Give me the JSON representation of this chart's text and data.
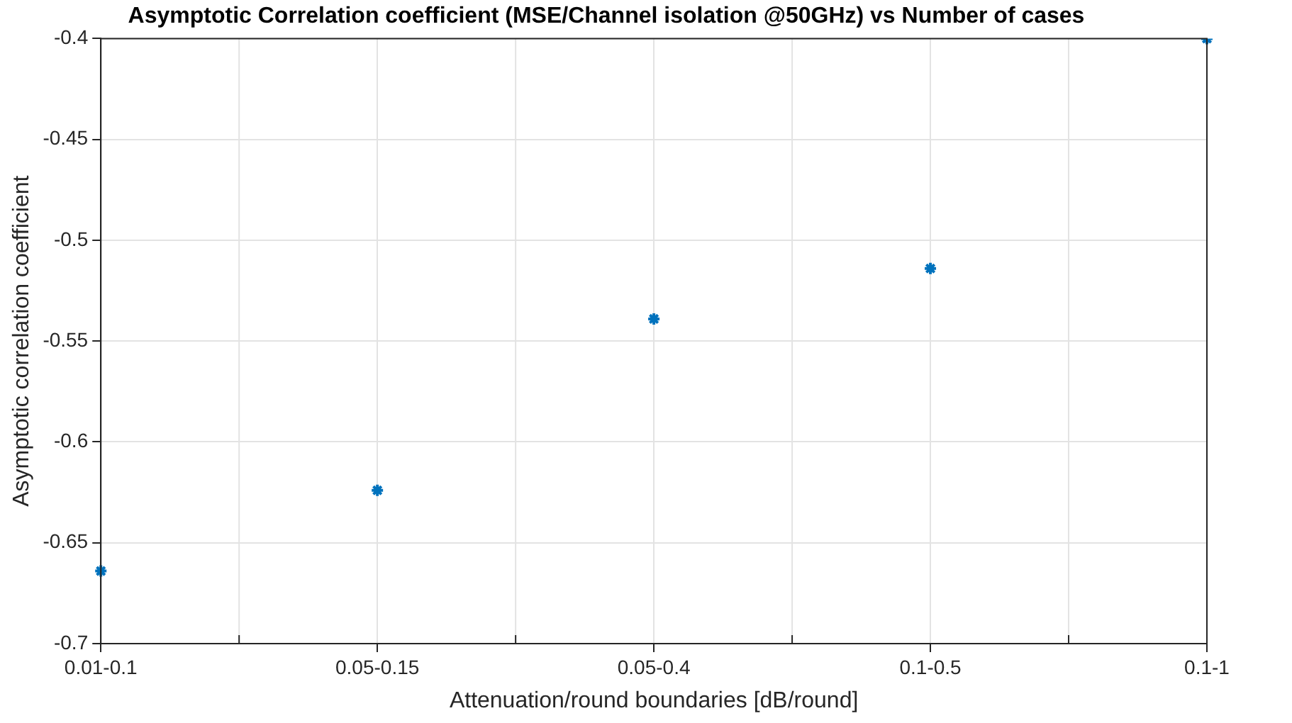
{
  "chart_data": {
    "type": "scatter",
    "title": "Asymptotic Correlation coefficient (MSE/Channel isolation @50GHz) vs Number of cases",
    "xlabel": "Attenuation/round boundaries [dB/round]",
    "ylabel": "Asymptotic correlation coefficient",
    "categories": [
      "0.01-0.1",
      "0.05-0.15",
      "0.05-0.4",
      "0.1-0.5",
      "0.1-1"
    ],
    "series": [
      {
        "color": "#0072bd",
        "values": [
          -0.664,
          -0.624,
          -0.539,
          -0.514,
          -0.4
        ]
      }
    ],
    "ylim": [
      -0.7,
      -0.4
    ],
    "yticks": [
      -0.7,
      -0.65,
      -0.6,
      -0.55,
      -0.5,
      -0.45,
      -0.4
    ],
    "grid": true,
    "marker": "cross"
  }
}
